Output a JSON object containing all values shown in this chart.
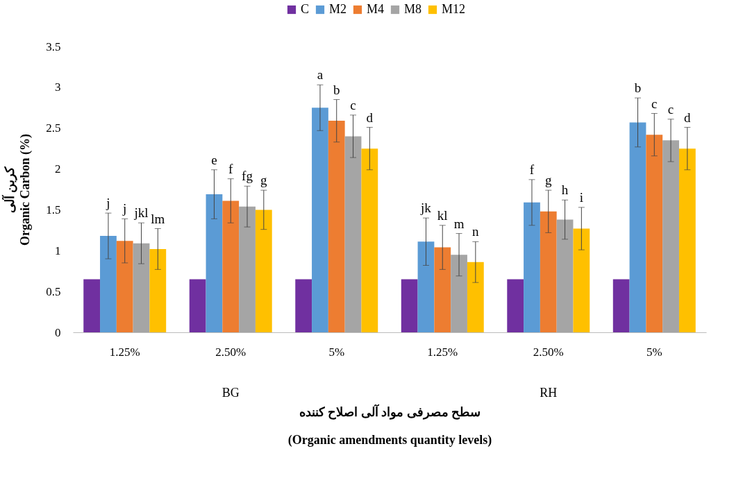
{
  "chart_data": {
    "type": "bar",
    "ylabel": "کربن آلی\nOrganic Carbon (%)",
    "xlabel": "سطح مصرفی مواد آلی اصلاح کننده\n(Organic amendments quantity levels)",
    "categories": [
      "1.25%",
      "2.50%",
      "5%",
      "1.25%",
      "2.50%",
      "5%"
    ],
    "annotations": [
      "BG",
      "RH"
    ],
    "ylim": [
      0,
      3.5
    ],
    "yticks": [
      {
        "value": 0,
        "label": "0"
      },
      0.5,
      {
        "value": 1,
        "label": "1"
      },
      1.5,
      {
        "value": 2,
        "label": "2"
      },
      2.5,
      {
        "value": 3,
        "label": "3"
      },
      3.5
    ],
    "legend": "top",
    "series": [
      {
        "name": "C",
        "color": "#7030a0",
        "values": [
          0.65,
          0.65,
          0.65,
          0.65,
          0.65,
          0.65
        ]
      },
      {
        "name": "M2",
        "color": "#5b9bd5",
        "values": [
          1.18,
          1.69,
          2.75,
          1.11,
          1.59,
          2.57
        ],
        "errors": [
          0.28,
          0.3,
          0.28,
          0.29,
          0.28,
          0.3
        ],
        "value_labels": [
          "j",
          "e",
          "a",
          "jk",
          "f",
          "b"
        ]
      },
      {
        "name": "M4",
        "color": "#ed7d31",
        "values": [
          1.12,
          1.61,
          2.59,
          1.04,
          1.48,
          2.42
        ],
        "errors": [
          0.27,
          0.27,
          0.26,
          0.27,
          0.26,
          0.26
        ],
        "value_labels": [
          "j",
          "f",
          "b",
          "kl",
          "g",
          "c"
        ]
      },
      {
        "name": "M8",
        "color": "#a5a5a5",
        "values": [
          1.09,
          1.54,
          2.4,
          0.95,
          1.38,
          2.35
        ],
        "errors": [
          0.25,
          0.25,
          0.26,
          0.26,
          0.24,
          0.26
        ],
        "value_labels": [
          "jkl",
          "fg",
          "c",
          "m",
          "h",
          "c"
        ]
      },
      {
        "name": "M12",
        "color": "#ffc000",
        "values": [
          1.02,
          1.5,
          2.25,
          0.86,
          1.27,
          2.25
        ],
        "errors": [
          0.25,
          0.24,
          0.26,
          0.25,
          0.26,
          0.26
        ],
        "value_labels": [
          "lm",
          "g",
          "d",
          "n",
          "i",
          "d"
        ]
      }
    ]
  }
}
